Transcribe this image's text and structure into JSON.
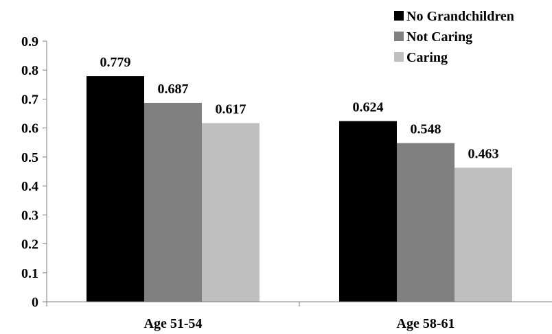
{
  "chart_data": {
    "type": "bar",
    "categories": [
      "Age 51-54",
      "Age 58-61"
    ],
    "series": [
      {
        "name": "No Grandchildren",
        "values": [
          0.779,
          0.624
        ],
        "color": "#000000"
      },
      {
        "name": "Not Caring",
        "values": [
          0.687,
          0.548
        ],
        "color": "#808080"
      },
      {
        "name": "Caring",
        "values": [
          0.617,
          0.463
        ],
        "color": "#c0c0c0"
      }
    ],
    "value_labels": [
      [
        "0.779",
        "0.624"
      ],
      [
        "0.687",
        "0.548"
      ],
      [
        "0.617",
        "0.463"
      ]
    ],
    "ylim": [
      0,
      0.9
    ],
    "yticks": [
      "0",
      "0.1",
      "0.2",
      "0.3",
      "0.4",
      "0.5",
      "0.6",
      "0.7",
      "0.8",
      "0.9"
    ],
    "grid": false,
    "legend_position": "top-right",
    "title": "",
    "xlabel": "",
    "ylabel": ""
  }
}
